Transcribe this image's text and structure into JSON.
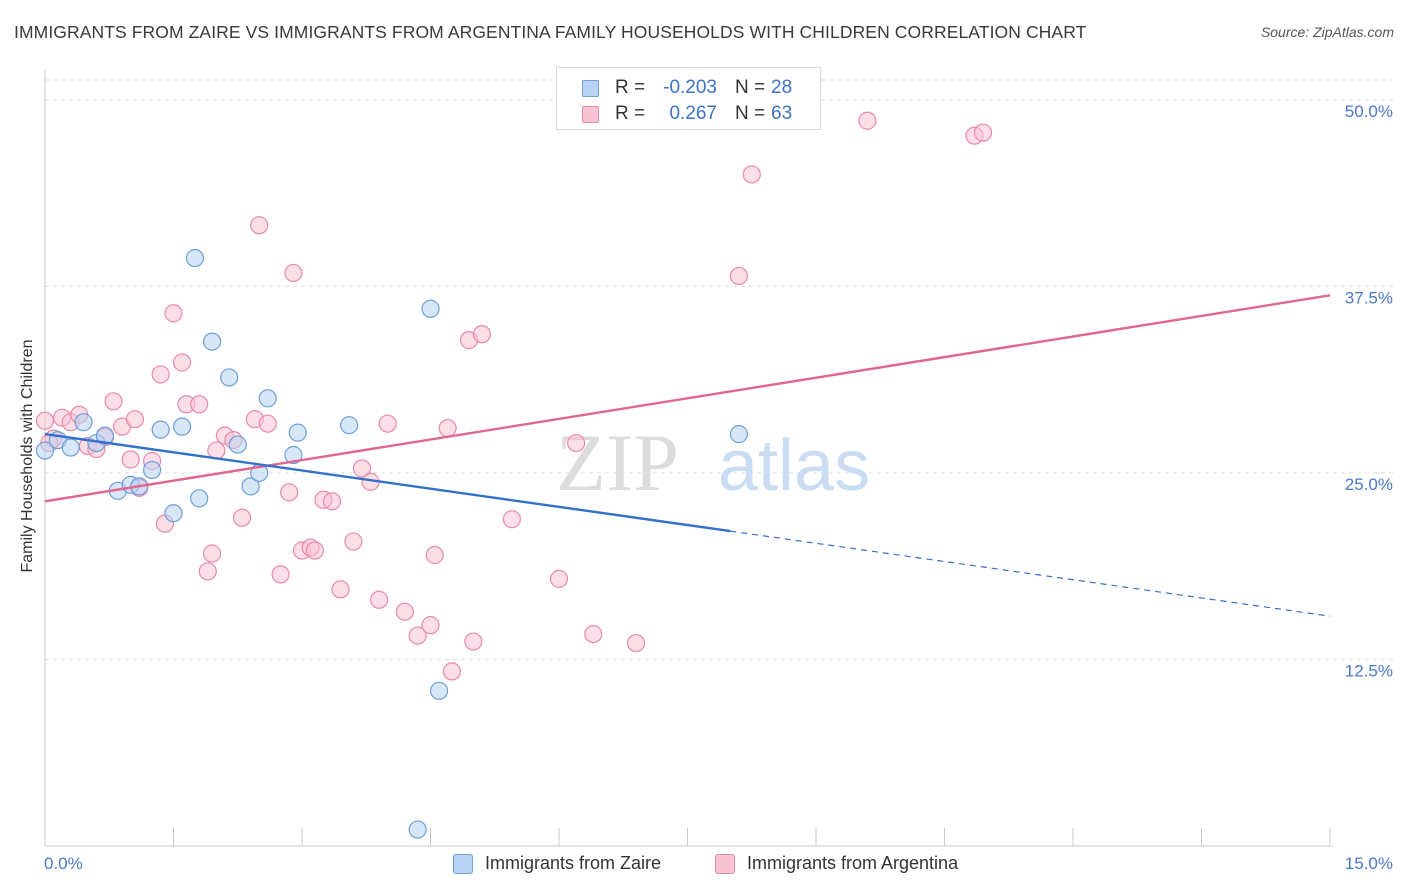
{
  "header": {
    "title": "IMMIGRANTS FROM ZAIRE VS IMMIGRANTS FROM ARGENTINA FAMILY HOUSEHOLDS WITH CHILDREN CORRELATION CHART",
    "source": "Source: ZipAtlas.com"
  },
  "watermark": {
    "zip": "ZIP",
    "atlas": "atlas"
  },
  "stats": {
    "zaire": {
      "r_label": "R =",
      "r_value": "-0.203",
      "n_label": "N =",
      "n_value": "28"
    },
    "argentina": {
      "r_label": "R =",
      "r_value": "0.267",
      "n_label": "N =",
      "n_value": "63"
    }
  },
  "colors": {
    "zaire_fill": "#b8d3f3",
    "zaire_stroke": "#6d9fd9",
    "zaire_line": "#3370cc",
    "argentina_fill": "#f9c3d3",
    "argentina_stroke": "#e88aa8",
    "argentina_line": "#e0668f",
    "grid": "#dedede",
    "tick_label": "#4a78c8"
  },
  "chart_data": {
    "type": "scatter",
    "title": "IMMIGRANTS FROM ZAIRE VS IMMIGRANTS FROM ARGENTINA FAMILY HOUSEHOLDS WITH CHILDREN CORRELATION CHART",
    "xlabel": "",
    "ylabel": "Family Households with Children",
    "xlim": [
      0,
      15
    ],
    "ylim": [
      0,
      52
    ],
    "x_tick_labels": [
      "0.0%",
      "15.0%"
    ],
    "y_ticks": [
      12.5,
      25.0,
      37.5,
      50.0
    ],
    "y_tick_labels": [
      "12.5%",
      "25.0%",
      "37.5%",
      "50.0%"
    ],
    "grid": true,
    "legend_position": "bottom-center",
    "series": [
      {
        "name": "Immigrants from Zaire",
        "points": [
          [
            0.0,
            26.5
          ],
          [
            0.15,
            27.2
          ],
          [
            0.3,
            26.7
          ],
          [
            0.45,
            28.4
          ],
          [
            0.6,
            27.0
          ],
          [
            0.7,
            27.5
          ],
          [
            0.85,
            23.8
          ],
          [
            1.0,
            24.2
          ],
          [
            1.1,
            24.1
          ],
          [
            1.25,
            25.2
          ],
          [
            1.35,
            27.9
          ],
          [
            1.5,
            22.3
          ],
          [
            1.6,
            28.1
          ],
          [
            1.75,
            39.4
          ],
          [
            1.8,
            23.3
          ],
          [
            1.95,
            33.8
          ],
          [
            2.15,
            31.4
          ],
          [
            2.25,
            26.9
          ],
          [
            2.4,
            24.1
          ],
          [
            2.5,
            25.0
          ],
          [
            2.6,
            30.0
          ],
          [
            2.9,
            26.2
          ],
          [
            2.95,
            27.7
          ],
          [
            3.55,
            28.2
          ],
          [
            4.35,
            1.1
          ],
          [
            4.5,
            36.0
          ],
          [
            4.6,
            10.4
          ],
          [
            8.1,
            27.6
          ]
        ],
        "trendline": {
          "x": [
            0.0,
            8.0
          ],
          "y": [
            27.6,
            21.1
          ],
          "dashed_extension": {
            "x": [
              8.0,
              15.0
            ],
            "y": [
              21.1,
              15.4
            ]
          }
        }
      },
      {
        "name": "Immigrants from Argentina",
        "points": [
          [
            0.0,
            28.5
          ],
          [
            0.1,
            27.3
          ],
          [
            0.2,
            28.7
          ],
          [
            0.3,
            28.4
          ],
          [
            0.4,
            28.9
          ],
          [
            0.5,
            26.8
          ],
          [
            0.6,
            26.6
          ],
          [
            0.7,
            27.4
          ],
          [
            0.8,
            29.8
          ],
          [
            0.9,
            28.1
          ],
          [
            1.0,
            25.9
          ],
          [
            1.05,
            28.6
          ],
          [
            1.1,
            24.0
          ],
          [
            1.25,
            25.8
          ],
          [
            1.35,
            31.6
          ],
          [
            1.4,
            21.6
          ],
          [
            1.5,
            35.7
          ],
          [
            1.6,
            32.4
          ],
          [
            1.65,
            29.6
          ],
          [
            1.8,
            29.6
          ],
          [
            1.9,
            18.4
          ],
          [
            1.95,
            19.6
          ],
          [
            2.0,
            26.5
          ],
          [
            2.1,
            27.5
          ],
          [
            2.2,
            27.2
          ],
          [
            2.3,
            22.0
          ],
          [
            2.45,
            28.6
          ],
          [
            2.5,
            41.6
          ],
          [
            2.6,
            28.3
          ],
          [
            2.75,
            18.2
          ],
          [
            2.85,
            23.7
          ],
          [
            2.9,
            38.4
          ],
          [
            3.0,
            19.8
          ],
          [
            3.1,
            20.0
          ],
          [
            3.15,
            19.8
          ],
          [
            3.25,
            23.2
          ],
          [
            3.35,
            23.1
          ],
          [
            3.45,
            17.2
          ],
          [
            3.6,
            20.4
          ],
          [
            3.7,
            25.3
          ],
          [
            3.8,
            24.4
          ],
          [
            3.9,
            16.5
          ],
          [
            4.0,
            28.3
          ],
          [
            4.2,
            15.7
          ],
          [
            4.35,
            14.1
          ],
          [
            4.5,
            14.8
          ],
          [
            4.55,
            19.5
          ],
          [
            4.7,
            28.0
          ],
          [
            4.75,
            11.7
          ],
          [
            4.95,
            33.9
          ],
          [
            5.0,
            13.7
          ],
          [
            5.1,
            34.3
          ],
          [
            5.45,
            21.9
          ],
          [
            6.0,
            17.9
          ],
          [
            6.2,
            27.0
          ],
          [
            6.4,
            14.2
          ],
          [
            6.9,
            13.6
          ],
          [
            8.1,
            38.2
          ],
          [
            8.25,
            45.0
          ],
          [
            9.6,
            48.6
          ],
          [
            10.85,
            47.6
          ],
          [
            10.95,
            47.8
          ],
          [
            0.05,
            27.0
          ]
        ],
        "trendline": {
          "x": [
            0.0,
            15.0
          ],
          "y": [
            23.1,
            36.9
          ]
        }
      }
    ]
  }
}
